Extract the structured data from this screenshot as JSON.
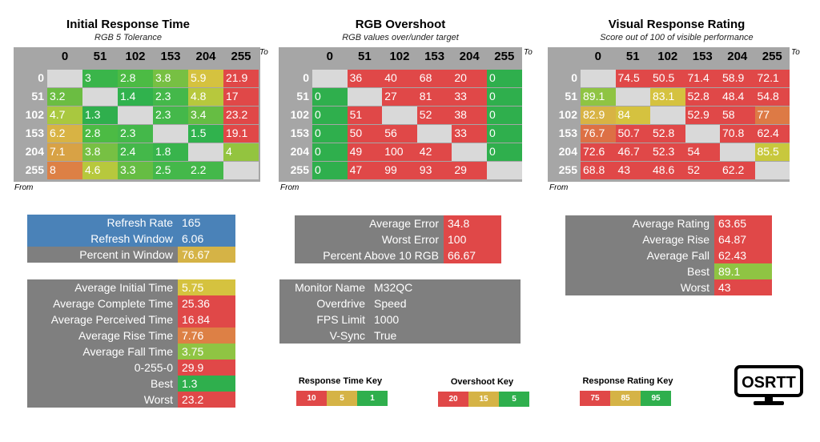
{
  "colors": {
    "gray": "#a6a6a6",
    "dark_gray": "#7f7f7f",
    "blank": "#d9d9d9",
    "blue": "#4a82b8"
  },
  "axis": {
    "to": "To",
    "from": "From"
  },
  "panels": [
    {
      "title": "Initial Response Time",
      "subtitle": "RGB 5 Tolerance",
      "cols": [
        "0",
        "51",
        "102",
        "153",
        "204",
        "255"
      ],
      "rows": [
        "0",
        "51",
        "102",
        "153",
        "204",
        "255"
      ],
      "cells": [
        [
          [
            "",
            ""
          ],
          [
            "3",
            "#3ab54a"
          ],
          [
            "2.8",
            "#4cbb44"
          ],
          [
            "3.8",
            "#77c043"
          ],
          [
            "5.9",
            "#d5c23f"
          ],
          [
            "21.9",
            "#e04848"
          ]
        ],
        [
          [
            "3.2",
            "#6bbd42"
          ],
          [
            "",
            ""
          ],
          [
            "1.4",
            "#30b24d"
          ],
          [
            "2.3",
            "#44b84a"
          ],
          [
            "4.8",
            "#b7c83d"
          ],
          [
            "17",
            "#e04848"
          ]
        ],
        [
          [
            "4.7",
            "#a9c83f"
          ],
          [
            "1.3",
            "#2faf4d"
          ],
          [
            "",
            ""
          ],
          [
            "2.3",
            "#44b84a"
          ],
          [
            "3.4",
            "#66bd43"
          ],
          [
            "23.2",
            "#e04848"
          ]
        ],
        [
          [
            "6.2",
            "#d8b344"
          ],
          [
            "2.8",
            "#4cbb44"
          ],
          [
            "2.3",
            "#44b84a"
          ],
          [
            "",
            ""
          ],
          [
            "1.5",
            "#30b24d"
          ],
          [
            "19.1",
            "#e04848"
          ]
        ],
        [
          [
            "7.1",
            "#d8a245"
          ],
          [
            "3.8",
            "#77c043"
          ],
          [
            "2.4",
            "#44b84a"
          ],
          [
            "1.8",
            "#38b44c"
          ],
          [
            "",
            ""
          ],
          [
            "4",
            "#93c43f"
          ]
        ],
        [
          [
            "8",
            "#dd8045"
          ],
          [
            "4.6",
            "#b7c83d"
          ],
          [
            "3.3",
            "#66bd43"
          ],
          [
            "2.5",
            "#44b84a"
          ],
          [
            "2.2",
            "#44b84a"
          ],
          [
            "",
            ""
          ]
        ]
      ]
    },
    {
      "title": "RGB Overshoot",
      "subtitle": "RGB values over/under target",
      "cols": [
        "0",
        "51",
        "102",
        "153",
        "204",
        "255"
      ],
      "rows": [
        "0",
        "51",
        "102",
        "153",
        "204",
        "255"
      ],
      "cells": [
        [
          [
            "",
            ""
          ],
          [
            "36",
            "#e04848"
          ],
          [
            "40",
            "#e04848"
          ],
          [
            "68",
            "#e04848"
          ],
          [
            "20",
            "#e04848"
          ],
          [
            "0",
            "#2faf4d"
          ]
        ],
        [
          [
            "0",
            "#2faf4d"
          ],
          [
            "",
            ""
          ],
          [
            "27",
            "#e04848"
          ],
          [
            "81",
            "#e04848"
          ],
          [
            "33",
            "#e04848"
          ],
          [
            "0",
            "#2faf4d"
          ]
        ],
        [
          [
            "0",
            "#2faf4d"
          ],
          [
            "51",
            "#e04848"
          ],
          [
            "",
            ""
          ],
          [
            "52",
            "#e04848"
          ],
          [
            "38",
            "#e04848"
          ],
          [
            "0",
            "#2faf4d"
          ]
        ],
        [
          [
            "0",
            "#2faf4d"
          ],
          [
            "50",
            "#e04848"
          ],
          [
            "56",
            "#e04848"
          ],
          [
            "",
            ""
          ],
          [
            "33",
            "#e04848"
          ],
          [
            "0",
            "#2faf4d"
          ]
        ],
        [
          [
            "0",
            "#2faf4d"
          ],
          [
            "49",
            "#e04848"
          ],
          [
            "100",
            "#e04848"
          ],
          [
            "42",
            "#e04848"
          ],
          [
            "",
            ""
          ],
          [
            "0",
            "#2faf4d"
          ]
        ],
        [
          [
            "0",
            "#2faf4d"
          ],
          [
            "47",
            "#e04848"
          ],
          [
            "99",
            "#e04848"
          ],
          [
            "93",
            "#e04848"
          ],
          [
            "29",
            "#e04848"
          ],
          [
            "",
            ""
          ]
        ]
      ]
    },
    {
      "title": "Visual Response Rating",
      "subtitle": "Score out of 100 of visible performance",
      "cols": [
        "0",
        "51",
        "102",
        "153",
        "204",
        "255"
      ],
      "rows": [
        "0",
        "51",
        "102",
        "153",
        "204",
        "255"
      ],
      "cells": [
        [
          [
            "",
            ""
          ],
          [
            "74.5",
            "#e04848"
          ],
          [
            "50.5",
            "#e04848"
          ],
          [
            "71.4",
            "#e04848"
          ],
          [
            "58.9",
            "#e04848"
          ],
          [
            "72.1",
            "#e04848"
          ]
        ],
        [
          [
            "89.1",
            "#8fc443"
          ],
          [
            "",
            ""
          ],
          [
            "83.1",
            "#d5c23f"
          ],
          [
            "52.8",
            "#e04848"
          ],
          [
            "48.4",
            "#e04848"
          ],
          [
            "54.8",
            "#e04848"
          ]
        ],
        [
          [
            "82.9",
            "#d8b344"
          ],
          [
            "84",
            "#d5c23f"
          ],
          [
            "",
            ""
          ],
          [
            "52.9",
            "#e04848"
          ],
          [
            "58",
            "#e04848"
          ],
          [
            "77",
            "#dd7a45"
          ]
        ],
        [
          [
            "76.7",
            "#dd7045"
          ],
          [
            "50.7",
            "#e04848"
          ],
          [
            "52.8",
            "#e04848"
          ],
          [
            "",
            ""
          ],
          [
            "70.8",
            "#e04848"
          ],
          [
            "62.4",
            "#e04848"
          ]
        ],
        [
          [
            "72.6",
            "#e04848"
          ],
          [
            "46.7",
            "#e04848"
          ],
          [
            "52.3",
            "#e04848"
          ],
          [
            "54",
            "#e04848"
          ],
          [
            "",
            ""
          ],
          [
            "85.5",
            "#c8c83d"
          ]
        ],
        [
          [
            "68.8",
            "#e04848"
          ],
          [
            "43",
            "#e04848"
          ],
          [
            "48.6",
            "#e04848"
          ],
          [
            "52",
            "#e04848"
          ],
          [
            "62.2",
            "#e04848"
          ],
          [
            "",
            ""
          ]
        ]
      ]
    }
  ],
  "refresh_box": [
    {
      "label": "Refresh Rate",
      "value": "165",
      "label_bg": "#4a82b8",
      "value_bg": "#4a82b8"
    },
    {
      "label": "Refresh Window",
      "value": "6.06",
      "label_bg": "#4a82b8",
      "value_bg": "#4a82b8"
    },
    {
      "label": "Percent in Window",
      "value": "76.67",
      "label_bg": "#7f7f7f",
      "value_bg": "#d5b346"
    }
  ],
  "response_stats": [
    {
      "label": "Average Initial Time",
      "value": "5.75",
      "value_bg": "#d5c23f"
    },
    {
      "label": "Average Complete Time",
      "value": "25.36",
      "value_bg": "#e04848"
    },
    {
      "label": "Average Perceived Time",
      "value": "16.84",
      "value_bg": "#e04848"
    },
    {
      "label": "Average Rise Time",
      "value": "7.76",
      "value_bg": "#dd8045"
    },
    {
      "label": "Average Fall Time",
      "value": "3.75",
      "value_bg": "#8fc443"
    },
    {
      "label": "0-255-0",
      "value": "29.9",
      "value_bg": "#e04848"
    },
    {
      "label": "Best",
      "value": "1.3",
      "value_bg": "#2faf4d"
    },
    {
      "label": "Worst",
      "value": "23.2",
      "value_bg": "#e04848"
    }
  ],
  "overshoot_stats": [
    {
      "label": "Average Error",
      "value": "34.8",
      "value_bg": "#e04848"
    },
    {
      "label": "Worst Error",
      "value": "100",
      "value_bg": "#e04848"
    },
    {
      "label": "Percent Above 10 RGB",
      "value": "66.67",
      "value_bg": "#e04848"
    }
  ],
  "monitor_info": [
    {
      "label": "Monitor Name",
      "value": "M32QC"
    },
    {
      "label": "Overdrive",
      "value": "Speed"
    },
    {
      "label": "FPS Limit",
      "value": "1000"
    },
    {
      "label": "V-Sync",
      "value": "True"
    }
  ],
  "rating_stats": [
    {
      "label": "Average Rating",
      "value": "63.65",
      "value_bg": "#e04848"
    },
    {
      "label": "Average Rise",
      "value": "64.87",
      "value_bg": "#e04848"
    },
    {
      "label": "Average Fall",
      "value": "62.43",
      "value_bg": "#e04848"
    },
    {
      "label": "Best",
      "value": "89.1",
      "value_bg": "#8fc443"
    },
    {
      "label": "Worst",
      "value": "43",
      "value_bg": "#e04848"
    }
  ],
  "keys": [
    {
      "title": "Response Time Key",
      "cells": [
        {
          "v": "10",
          "c": "#e04848"
        },
        {
          "v": "5",
          "c": "#d5b346"
        },
        {
          "v": "1",
          "c": "#2faf4d"
        }
      ]
    },
    {
      "title": "Overshoot Key",
      "cells": [
        {
          "v": "20",
          "c": "#e04848"
        },
        {
          "v": "15",
          "c": "#d5b346"
        },
        {
          "v": "5",
          "c": "#2faf4d"
        }
      ]
    },
    {
      "title": "Response Rating Key",
      "cells": [
        {
          "v": "75",
          "c": "#e04848"
        },
        {
          "v": "85",
          "c": "#d5b346"
        },
        {
          "v": "95",
          "c": "#2faf4d"
        }
      ]
    }
  ],
  "logo": {
    "text": "OSRTT",
    "icon": "monitor-icon"
  }
}
